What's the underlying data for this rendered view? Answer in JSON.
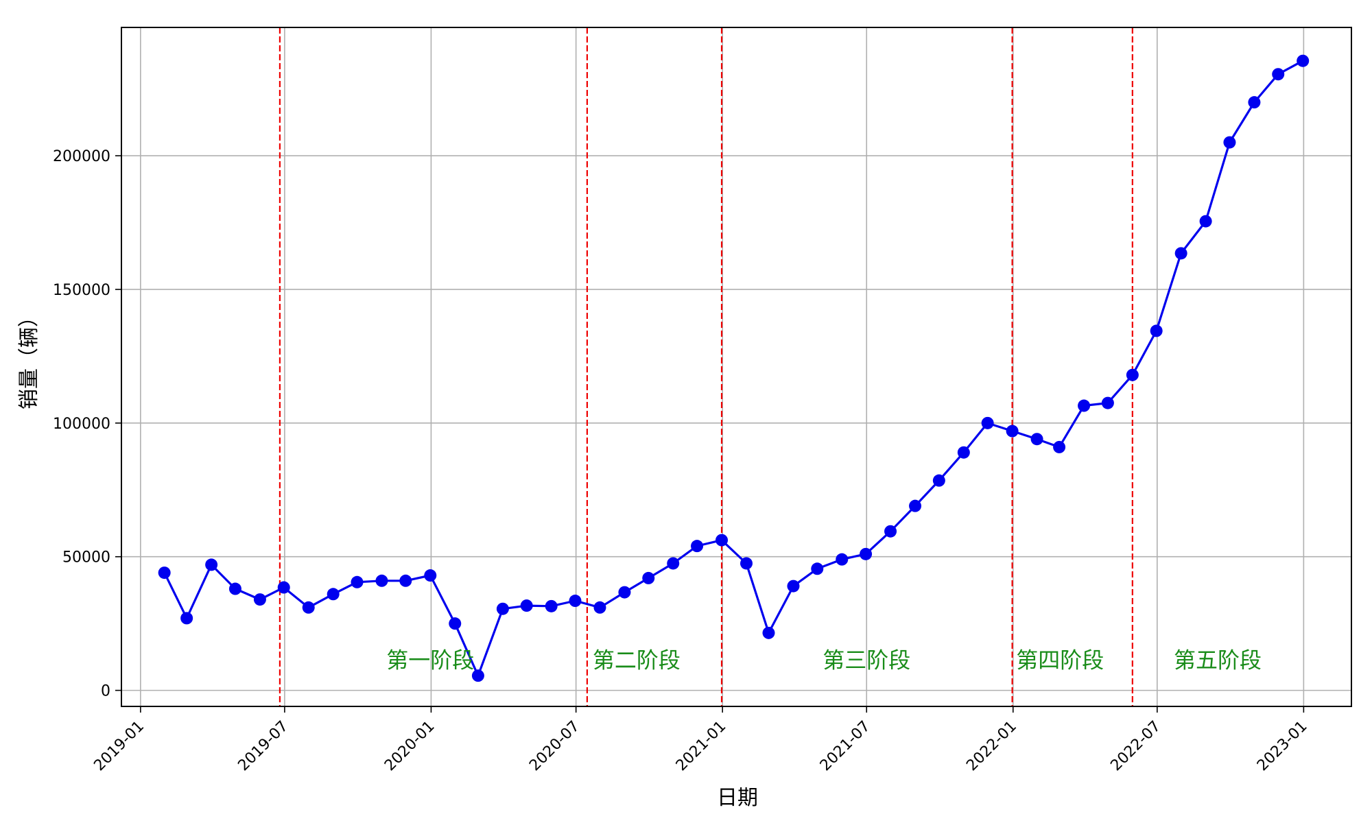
{
  "chart_data": {
    "type": "line",
    "xlabel": "日期",
    "ylabel": "销量（辆）",
    "x_ticks": [
      "2019-01",
      "2019-07",
      "2020-01",
      "2020-07",
      "2021-01",
      "2021-07",
      "2022-01",
      "2022-07",
      "2023-01"
    ],
    "y_ticks": [
      "0",
      "50000",
      "100000",
      "150000",
      "200000"
    ],
    "ylim": [
      -6000,
      248000
    ],
    "xlim": [
      "2018-12-08",
      "2023-03-02"
    ],
    "grid": true,
    "series": [
      {
        "color": "#0000ee",
        "marker": "circle",
        "points": [
          [
            "2019-01-31",
            44000
          ],
          [
            "2019-02-28",
            27000
          ],
          [
            "2019-03-31",
            47000
          ],
          [
            "2019-04-30",
            38000
          ],
          [
            "2019-05-31",
            34000
          ],
          [
            "2019-06-30",
            38500
          ],
          [
            "2019-07-31",
            31000
          ],
          [
            "2019-08-31",
            36000
          ],
          [
            "2019-09-30",
            40500
          ],
          [
            "2019-10-31",
            41000
          ],
          [
            "2019-11-30",
            41000
          ],
          [
            "2019-12-31",
            43000
          ],
          [
            "2020-01-31",
            25000
          ],
          [
            "2020-02-29",
            5500
          ],
          [
            "2020-03-31",
            30500
          ],
          [
            "2020-04-30",
            31700
          ],
          [
            "2020-05-31",
            31500
          ],
          [
            "2020-06-30",
            33500
          ],
          [
            "2020-07-31",
            31000
          ],
          [
            "2020-08-31",
            36700
          ],
          [
            "2020-09-30",
            42000
          ],
          [
            "2020-10-31",
            47500
          ],
          [
            "2020-11-30",
            54000
          ],
          [
            "2020-12-31",
            56200
          ],
          [
            "2021-01-31",
            47500
          ],
          [
            "2021-02-28",
            21500
          ],
          [
            "2021-03-31",
            39000
          ],
          [
            "2021-04-30",
            45500
          ],
          [
            "2021-05-31",
            49000
          ],
          [
            "2021-06-30",
            51000
          ],
          [
            "2021-07-31",
            59500
          ],
          [
            "2021-08-31",
            69000
          ],
          [
            "2021-09-30",
            78500
          ],
          [
            "2021-10-31",
            89000
          ],
          [
            "2021-11-30",
            100000
          ],
          [
            "2021-12-31",
            97000
          ],
          [
            "2022-01-31",
            94000
          ],
          [
            "2022-02-28",
            91000
          ],
          [
            "2022-03-31",
            106500
          ],
          [
            "2022-04-30",
            107500
          ],
          [
            "2022-05-31",
            118000
          ],
          [
            "2022-06-30",
            134500
          ],
          [
            "2022-07-31",
            163500
          ],
          [
            "2022-08-31",
            175500
          ],
          [
            "2022-09-30",
            205000
          ],
          [
            "2022-10-31",
            220000
          ],
          [
            "2022-11-30",
            230500
          ],
          [
            "2022-12-31",
            235500
          ]
        ]
      }
    ],
    "phase_lines": {
      "color": "#ee0000",
      "style": "dashed",
      "dates": [
        "2019-06-25",
        "2020-07-15",
        "2020-12-31",
        "2021-12-31",
        "2022-05-31"
      ]
    },
    "phase_labels": {
      "color": "#1a8c1a",
      "items": [
        {
          "text": "第一阶段",
          "date": "2019-12-31",
          "y": 8500
        },
        {
          "text": "第二阶段",
          "date": "2020-09-15",
          "y": 8500
        },
        {
          "text": "第三阶段",
          "date": "2021-07-01",
          "y": 8500
        },
        {
          "text": "第四阶段",
          "date": "2022-03-01",
          "y": 8500
        },
        {
          "text": "第五阶段",
          "date": "2022-09-15",
          "y": 8500
        }
      ]
    }
  }
}
